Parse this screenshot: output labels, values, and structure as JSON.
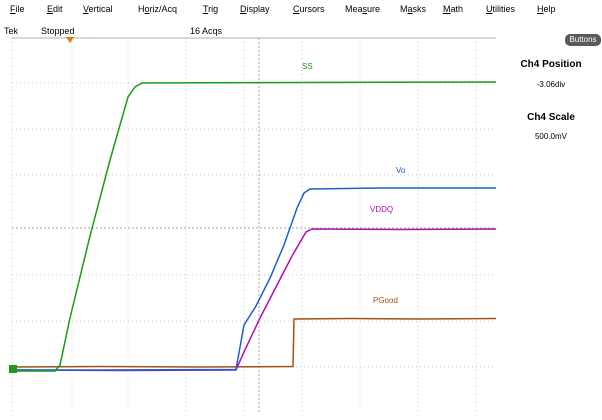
{
  "menu": {
    "file": {
      "mn": "F",
      "rest": "ile"
    },
    "edit": {
      "mn": "E",
      "rest": "dit"
    },
    "vertical": {
      "mn": "V",
      "rest": "ertical"
    },
    "horiz": {
      "pre": "H",
      "mn": "o",
      "rest": "riz/Acq"
    },
    "trig": {
      "mn": "T",
      "rest": "rig"
    },
    "display": {
      "mn": "D",
      "rest": "isplay"
    },
    "cursors": {
      "mn": "C",
      "rest": "ursors"
    },
    "measure": {
      "pre": "Mea",
      "mn": "s",
      "rest": "ure"
    },
    "masks": {
      "pre": "M",
      "mn": "a",
      "rest": "sks"
    },
    "math": {
      "mn": "M",
      "rest": "ath"
    },
    "utilities": {
      "mn": "U",
      "rest": "tilities"
    },
    "help": {
      "mn": "H",
      "rest": "elp"
    }
  },
  "status": {
    "brand": "Tek",
    "run_state": "Stopped",
    "acquisitions": "16 Acqs"
  },
  "side_panel": {
    "buttons_label": "Buttons",
    "position_heading": "Ch4 Position",
    "position_value": "-3.06div",
    "scale_heading": "Ch4 Scale",
    "scale_value": "500.0mV"
  },
  "traces": {
    "ss": {
      "label": "SS",
      "color": "#1a9a1a"
    },
    "vo": {
      "label": "Vo",
      "color": "#1f5fd0"
    },
    "vddq": {
      "label": "VDDQ",
      "color": "#b010b0"
    },
    "pgood": {
      "label": "PGood",
      "color": "#a0521a"
    }
  },
  "colors": {
    "grid": "#c8c8c8",
    "trigger_marker": "#e07a12",
    "button_bg": "#5a5a5a"
  }
}
